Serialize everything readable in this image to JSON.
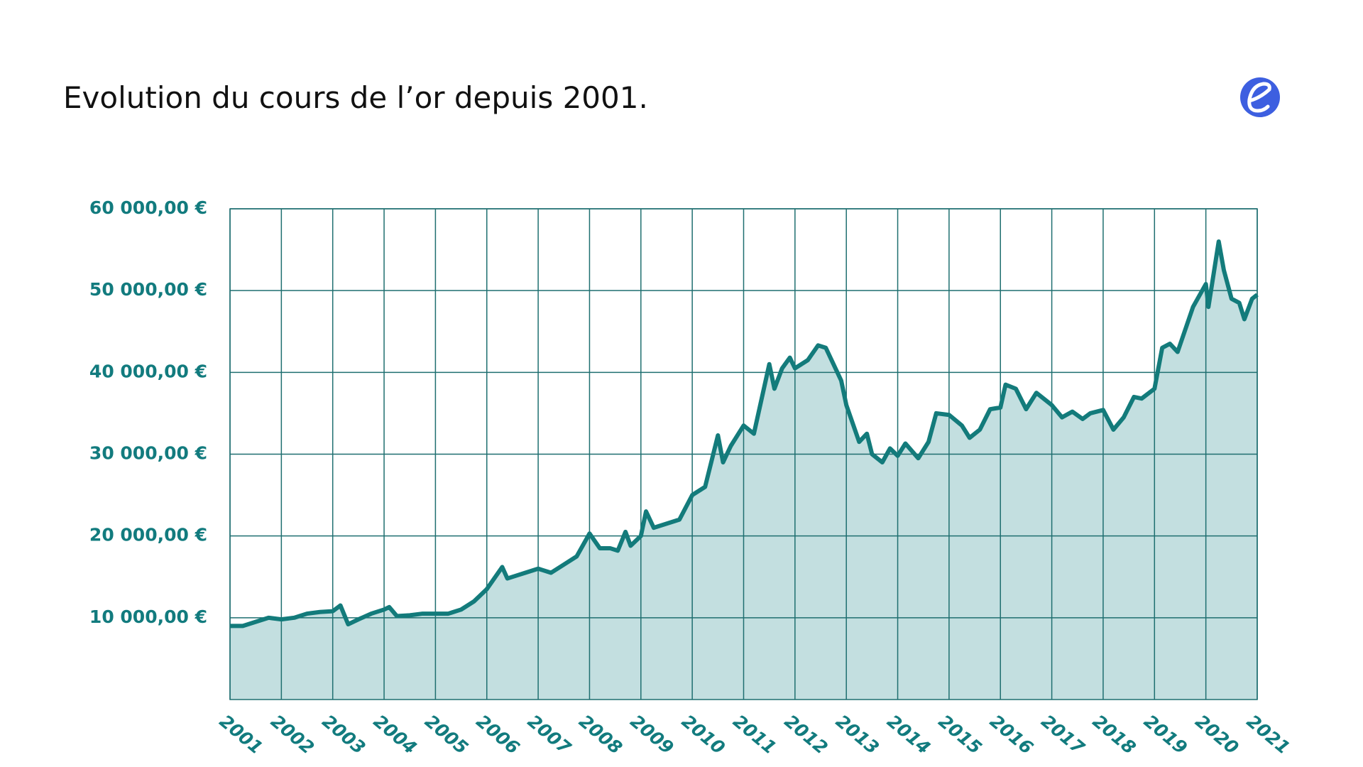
{
  "chart_data": {
    "type": "area",
    "title": "Evolution du cours de l’or depuis 2001.",
    "x": [
      2001,
      2001.25,
      2001.5,
      2001.75,
      2002,
      2002.25,
      2002.5,
      2002.75,
      2003,
      2003.15,
      2003.3,
      2003.5,
      2003.75,
      2004,
      2004.1,
      2004.25,
      2004.5,
      2004.75,
      2005,
      2005.25,
      2005.5,
      2005.75,
      2006,
      2006.3,
      2006.4,
      2006.6,
      2006.75,
      2007,
      2007.25,
      2007.5,
      2007.75,
      2008,
      2008.2,
      2008.4,
      2008.55,
      2008.7,
      2008.8,
      2009,
      2009.1,
      2009.25,
      2009.5,
      2009.75,
      2010,
      2010.25,
      2010.5,
      2010.6,
      2010.75,
      2011,
      2011.2,
      2011.5,
      2011.6,
      2011.75,
      2011.9,
      2012,
      2012.25,
      2012.45,
      2012.6,
      2012.9,
      2013,
      2013.25,
      2013.4,
      2013.5,
      2013.7,
      2013.85,
      2014,
      2014.15,
      2014.4,
      2014.6,
      2014.75,
      2015,
      2015.25,
      2015.4,
      2015.6,
      2015.8,
      2016,
      2016.1,
      2016.3,
      2016.5,
      2016.7,
      2017,
      2017.2,
      2017.4,
      2017.6,
      2017.75,
      2018,
      2018.2,
      2018.4,
      2018.6,
      2018.75,
      2019,
      2019.15,
      2019.3,
      2019.45,
      2019.75,
      2020,
      2020.05,
      2020.25,
      2020.35,
      2020.5,
      2020.65,
      2020.75,
      2020.9,
      2021
    ],
    "values": [
      9000,
      9000,
      9500,
      10000,
      9800,
      10000,
      10500,
      10700,
      10800,
      11500,
      9200,
      9800,
      10500,
      11000,
      11300,
      10200,
      10300,
      10500,
      10500,
      10500,
      11000,
      12000,
      13500,
      16200,
      14800,
      15200,
      15500,
      16000,
      15500,
      16500,
      17500,
      20300,
      18500,
      18500,
      18200,
      20500,
      18800,
      20000,
      23000,
      21000,
      21500,
      22000,
      25000,
      26000,
      32300,
      29000,
      31000,
      33500,
      32500,
      41000,
      38000,
      40500,
      41800,
      40500,
      41500,
      43300,
      43000,
      39000,
      36000,
      31500,
      32500,
      30000,
      29000,
      30700,
      29800,
      31300,
      29500,
      31500,
      35000,
      34800,
      33500,
      32000,
      33000,
      35500,
      35700,
      38500,
      38000,
      35500,
      37500,
      36000,
      34500,
      35200,
      34300,
      35000,
      35400,
      33000,
      34500,
      37000,
      36800,
      38000,
      43000,
      43500,
      42500,
      48000,
      50800,
      48000,
      56000,
      52500,
      49000,
      48500,
      46500,
      49000,
      49500
    ],
    "color": "#137b7b",
    "fill": "#c3dfe0",
    "xlim": [
      2001,
      2021
    ],
    "xticks": [
      2001,
      2002,
      2003,
      2004,
      2005,
      2006,
      2007,
      2008,
      2009,
      2010,
      2011,
      2012,
      2013,
      2014,
      2015,
      2016,
      2017,
      2018,
      2019,
      2020,
      2021
    ],
    "ylim": [
      0,
      60000
    ],
    "yticks": [
      {
        "value": 10000,
        "label": "10 000,00 €"
      },
      {
        "value": 20000,
        "label": "20 000,00 €"
      },
      {
        "value": 30000,
        "label": "30 000,00 €"
      },
      {
        "value": 40000,
        "label": "40 000,00 €"
      },
      {
        "value": 50000,
        "label": "50 000,00 €"
      },
      {
        "value": 60000,
        "label": "60 000,00 €"
      }
    ],
    "grid": true
  }
}
